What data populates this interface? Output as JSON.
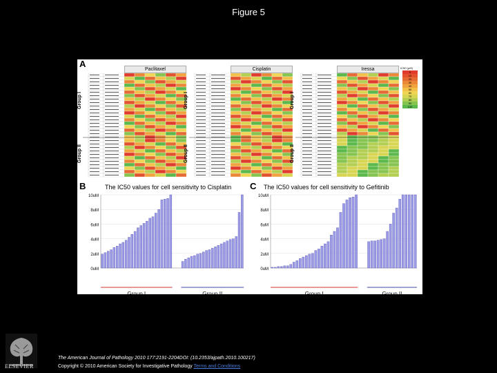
{
  "page": {
    "title": "Figure 5"
  },
  "panel_a": {
    "letter": "A",
    "tables": [
      {
        "drug": "Paclitaxel"
      },
      {
        "drug": "Cisplatin"
      },
      {
        "drug": "Iressa"
      }
    ],
    "group_labels": [
      "Group I",
      "Group II"
    ],
    "legend_title": "IC50 (μM)",
    "legend_values": [
      "5",
      "10",
      "20",
      "30",
      "40",
      "50",
      "60",
      "70",
      "80",
      "90",
      "100"
    ],
    "legend_colors": [
      "#e03b2c",
      "#e2522e",
      "#e66a33",
      "#eb8838",
      "#f0a33e",
      "#f3c04a",
      "#efd553",
      "#d8d552",
      "#b3cf52",
      "#86c450",
      "#5bb84b"
    ]
  },
  "chart_data": [
    {
      "type": "bar",
      "panel": "B",
      "title": "The IC50 values for cell sensitivity to Cisplatin",
      "ylabel": "",
      "ylim": [
        0,
        10
      ],
      "yticks": [
        "0uM",
        "2uM",
        "4uM",
        "6uM",
        "8uM",
        "10uM"
      ],
      "groups": [
        "Group I",
        "Group II"
      ],
      "series": [
        {
          "name": "Group I",
          "values": [
            1.9,
            2.1,
            2.3,
            2.5,
            2.8,
            3.0,
            3.3,
            3.5,
            3.8,
            4.2,
            4.6,
            5.0,
            5.5,
            5.8,
            6.1,
            6.4,
            6.8,
            7.0,
            7.5,
            8.0,
            9.3,
            9.4,
            9.5,
            10.0
          ]
        },
        {
          "name": "Group II",
          "values": [
            0.9,
            1.2,
            1.4,
            1.6,
            1.7,
            1.9,
            2.0,
            2.2,
            2.4,
            2.5,
            2.7,
            2.9,
            3.1,
            3.3,
            3.5,
            3.7,
            3.9,
            4.0,
            4.3,
            7.6,
            10.0
          ]
        }
      ]
    },
    {
      "type": "bar",
      "panel": "C",
      "title": "The IC50 values for cell sensitivity to Gefitinib",
      "ylabel": "",
      "ylim": [
        0,
        10
      ],
      "yticks": [
        "0uM",
        "2uM",
        "4uM",
        "6uM",
        "8uM",
        "10uM"
      ],
      "groups": [
        "Group I",
        "Group II"
      ],
      "series": [
        {
          "name": "Group I",
          "values": [
            0.1,
            0.1,
            0.2,
            0.2,
            0.3,
            0.3,
            0.5,
            0.8,
            1.0,
            1.3,
            1.5,
            1.7,
            1.9,
            2.0,
            2.4,
            2.6,
            3.0,
            3.3,
            3.6,
            4.5,
            5.0,
            5.5,
            7.6,
            8.8,
            9.3,
            9.6,
            9.7,
            10.0
          ]
        },
        {
          "name": "Group II",
          "values": [
            3.6,
            3.7,
            3.7,
            3.8,
            3.9,
            4.0,
            5.0,
            6.0,
            7.5,
            8.2,
            9.4,
            10.0,
            10.0,
            10.0,
            10.0,
            10.0
          ]
        }
      ]
    }
  ],
  "footer": {
    "citation": "The American Journal of Pathology 2010 177:2191-2204DOI: (10.2353/ajpath.2010.100217)",
    "copyright": "Copyright © 2010 American Society for Investigative Pathology",
    "terms": "Terms and Conditions",
    "publisher": "ELSEVIER"
  }
}
